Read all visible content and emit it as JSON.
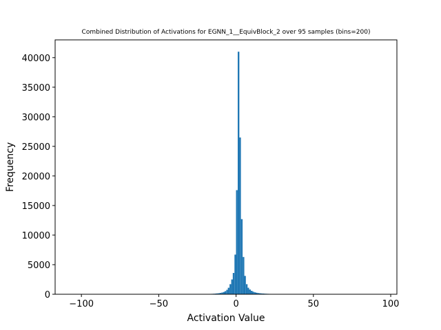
{
  "chart_data": {
    "type": "bar",
    "title": "Combined Distribution of Activations for EGNN_1__EquivBlock_2 over 95 samples  (bins=200)",
    "xlabel": "Activation Value",
    "ylabel": "Frequency",
    "xlim": [
      -117,
      104
    ],
    "ylim": [
      0,
      43000
    ],
    "bin_width": 1.06,
    "x_ticks": [
      -100,
      -50,
      0,
      50,
      100
    ],
    "x_tick_labels": [
      "−100",
      "−50",
      "0",
      "50",
      "100"
    ],
    "y_ticks": [
      0,
      5000,
      10000,
      15000,
      20000,
      25000,
      30000,
      35000,
      40000
    ],
    "y_tick_labels": [
      "0",
      "5000",
      "10000",
      "15000",
      "20000",
      "25000",
      "30000",
      "35000",
      "40000"
    ],
    "bar_color": "#1f77b4",
    "grid": false,
    "bins": [
      {
        "x": -19.6,
        "y": 30
      },
      {
        "x": -18.5,
        "y": 40
      },
      {
        "x": -17.5,
        "y": 50
      },
      {
        "x": -16.4,
        "y": 60
      },
      {
        "x": -15.4,
        "y": 70
      },
      {
        "x": -14.3,
        "y": 90
      },
      {
        "x": -13.2,
        "y": 110
      },
      {
        "x": -12.2,
        "y": 140
      },
      {
        "x": -11.1,
        "y": 170
      },
      {
        "x": -10.1,
        "y": 220
      },
      {
        "x": -9.0,
        "y": 290
      },
      {
        "x": -7.9,
        "y": 380
      },
      {
        "x": -6.9,
        "y": 520
      },
      {
        "x": -5.8,
        "y": 750
      },
      {
        "x": -4.8,
        "y": 1100
      },
      {
        "x": -3.7,
        "y": 1700
      },
      {
        "x": -2.6,
        "y": 2500
      },
      {
        "x": -1.6,
        "y": 3600
      },
      {
        "x": -0.5,
        "y": 6700
      },
      {
        "x": 0.5,
        "y": 17600
      },
      {
        "x": 1.6,
        "y": 41000
      },
      {
        "x": 2.6,
        "y": 26500
      },
      {
        "x": 3.7,
        "y": 12700
      },
      {
        "x": 4.8,
        "y": 6300
      },
      {
        "x": 5.8,
        "y": 3100
      },
      {
        "x": 6.9,
        "y": 1700
      },
      {
        "x": 7.9,
        "y": 1100
      },
      {
        "x": 9.0,
        "y": 800
      },
      {
        "x": 10.1,
        "y": 580
      },
      {
        "x": 11.1,
        "y": 430
      },
      {
        "x": 12.2,
        "y": 330
      },
      {
        "x": 13.2,
        "y": 260
      },
      {
        "x": 14.3,
        "y": 210
      },
      {
        "x": 15.4,
        "y": 170
      },
      {
        "x": 16.4,
        "y": 140
      },
      {
        "x": 17.5,
        "y": 120
      },
      {
        "x": 18.5,
        "y": 100
      },
      {
        "x": 19.6,
        "y": 85
      },
      {
        "x": 20.7,
        "y": 70
      },
      {
        "x": 21.7,
        "y": 60
      },
      {
        "x": 22.8,
        "y": 50
      },
      {
        "x": 23.8,
        "y": 40
      },
      {
        "x": 24.9,
        "y": 30
      },
      {
        "x": 26.0,
        "y": 25
      },
      {
        "x": 27.0,
        "y": 20
      },
      {
        "x": 28.1,
        "y": 15
      }
    ]
  }
}
